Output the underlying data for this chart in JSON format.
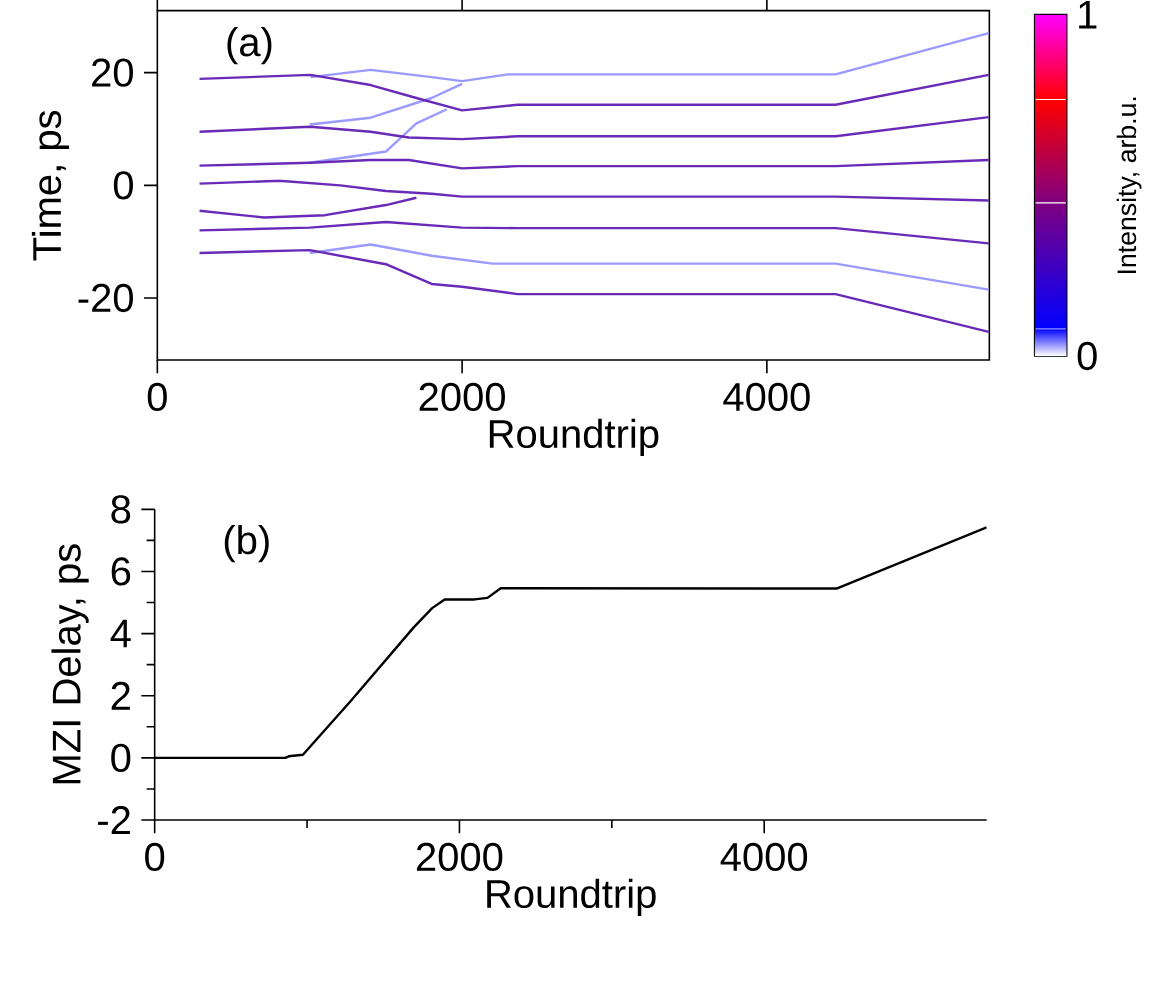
{
  "chart_data": [
    {
      "type": "line",
      "xlabel": "Roundtrip",
      "ylabel": "Time, ps",
      "annotations": [
        "(a)"
      ],
      "xlim": [
        0,
        5460
      ],
      "ylim": [
        -31,
        31
      ],
      "xticks": [
        0,
        2000,
        4000
      ],
      "yticks": [
        -20,
        0,
        20
      ],
      "clabel": "Intensity, arb.u.",
      "clim": [
        0,
        1
      ],
      "cticks": [
        0,
        1
      ],
      "series": [
        {
          "color": "#9a9aff",
          "x": [
            1005,
            1400,
            1800,
            2000,
            2300,
            4451,
            5456
          ],
          "values": [
            19.2,
            20.5,
            19.2,
            18.5,
            19.7,
            19.7,
            27
          ]
        },
        {
          "color": "#9a9aff",
          "x": [
            1000,
            1400,
            1800,
            2000
          ],
          "values": [
            10.8,
            12,
            15.5,
            18
          ]
        },
        {
          "color": "#9a9aff",
          "x": [
            1000,
            1500,
            1700,
            1900
          ],
          "values": [
            4,
            6,
            11,
            13.5
          ]
        },
        {
          "color": "#9a9aff",
          "x": [
            1000,
            1400,
            1800,
            2200,
            4451,
            5456
          ],
          "values": [
            -12,
            -10.5,
            -12.5,
            -13.9,
            -13.9,
            -18.5
          ]
        },
        {
          "color": "#6a2ab8",
          "x": [
            277,
            1005,
            1400,
            1700,
            2000,
            2364,
            4451,
            5456
          ],
          "values": [
            18.9,
            19.6,
            17.8,
            15.5,
            13.3,
            14.3,
            14.3,
            19.6
          ]
        },
        {
          "color": "#6a2ab8",
          "x": [
            277,
            1005,
            1400,
            1650,
            2000,
            2364,
            4451,
            5456
          ],
          "values": [
            9.5,
            10.4,
            9.5,
            8.5,
            8.2,
            8.7,
            8.7,
            12.1
          ]
        },
        {
          "color": "#6a2ab8",
          "x": [
            277,
            1005,
            1400,
            1650,
            2000,
            2364,
            4451,
            5456
          ],
          "values": [
            3.5,
            4,
            4.5,
            4.5,
            3,
            3.4,
            3.4,
            4.5
          ]
        },
        {
          "color": "#6a2ab8",
          "x": [
            277,
            800,
            1200,
            1500,
            1800,
            2000,
            2364,
            4451,
            5456
          ],
          "values": [
            0.3,
            0.8,
            0,
            -1,
            -1.5,
            -2,
            -2,
            -2,
            -2.7
          ]
        },
        {
          "color": "#6a2ab8",
          "x": [
            277,
            700,
            1100,
            1500,
            1700
          ],
          "values": [
            -4.5,
            -5.7,
            -5.3,
            -3.5,
            -2.2
          ]
        },
        {
          "color": "#6a2ab8",
          "x": [
            277,
            1000,
            1500,
            2000,
            2364,
            4451,
            5456
          ],
          "values": [
            -8,
            -7.5,
            -6.5,
            -7.5,
            -7.6,
            -7.6,
            -10.3
          ]
        },
        {
          "color": "#6a2ab8",
          "x": [
            277,
            1000,
            1500,
            1800,
            2000,
            2364,
            4451,
            5456
          ],
          "values": [
            -12,
            -11.5,
            -14,
            -17.5,
            -18,
            -19.3,
            -19.3,
            -26
          ]
        }
      ]
    },
    {
      "type": "line",
      "xlabel": "Roundtrip",
      "ylabel": "MZI Delay, ps",
      "annotations": [
        "(b)"
      ],
      "xlim": [
        0,
        5460
      ],
      "ylim": [
        -2,
        8
      ],
      "xticks": [
        0,
        2000,
        4000
      ],
      "yticks": [
        -2,
        0,
        2,
        4,
        6,
        8
      ],
      "series": [
        {
          "color": "#000000",
          "x": [
            0,
            857,
            880,
            973,
            1288,
            1700,
            1821,
            1903,
            2100,
            2184,
            2271,
            4475,
            5460
          ],
          "values": [
            0,
            0,
            0.05,
            0.1,
            1.84,
            4.2,
            4.82,
            5.1,
            5.1,
            5.15,
            5.46,
            5.45,
            7.42
          ]
        }
      ]
    }
  ]
}
